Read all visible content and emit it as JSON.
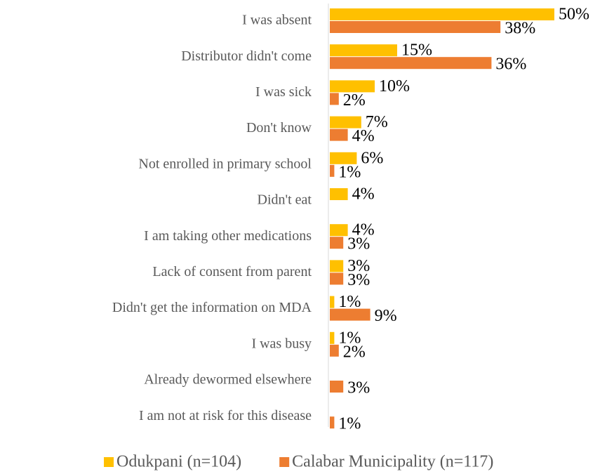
{
  "chart_data": {
    "type": "hbar",
    "categories": [
      "I was absent",
      "Distributor didn't come",
      "I was sick",
      "Don't know",
      "Not enrolled in primary school",
      "Didn't eat",
      "I am taking other medications",
      "Lack of consent from parent",
      "Didn't get the information on MDA",
      "I was busy",
      "Already dewormed elsewhere",
      "I am not at risk for this disease"
    ],
    "series": [
      {
        "name": "Odukpani (n=104)",
        "color": "#FFC000",
        "values": [
          50,
          15,
          10,
          7,
          6,
          4,
          4,
          3,
          1,
          1,
          null,
          null
        ],
        "value_labels": [
          "50%",
          "15%",
          "10%",
          "7%",
          "6%",
          "4%",
          "4%",
          "3%",
          "1%",
          "1%",
          null,
          null
        ]
      },
      {
        "name": "Calabar Municipality (n=117)",
        "color": "#ED7D31",
        "values": [
          38,
          36,
          2,
          4,
          1,
          null,
          3,
          3,
          9,
          2,
          3,
          1
        ],
        "value_labels": [
          "38%",
          "36%",
          "2%",
          "4%",
          "1%",
          null,
          "3%",
          "3%",
          "9%",
          "2%",
          "3%",
          "1%"
        ]
      }
    ],
    "xlim": [
      0,
      60
    ],
    "legend": "bottom"
  }
}
